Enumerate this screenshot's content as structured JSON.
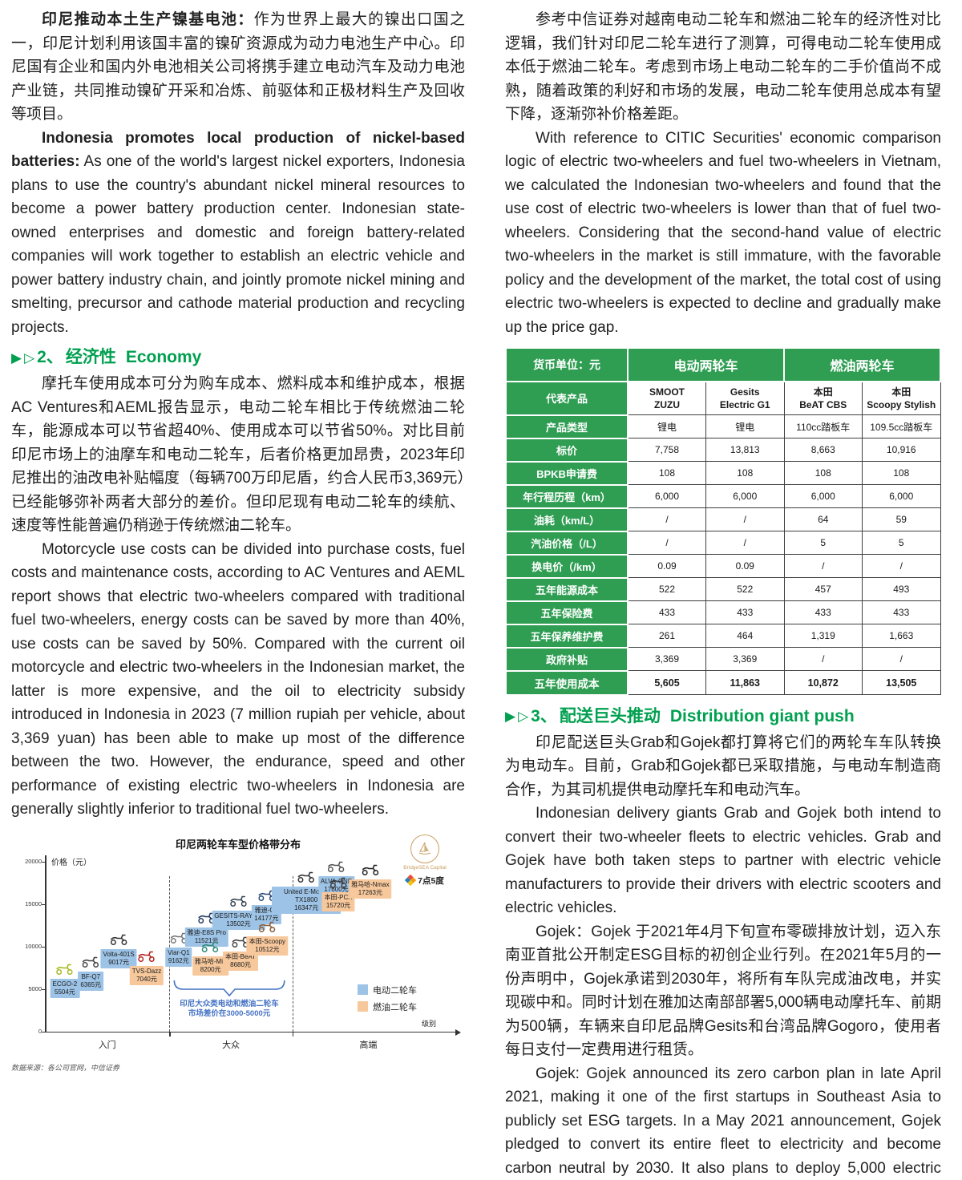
{
  "icons": {
    "arrow_filled": "▶",
    "arrow_open": "▷"
  },
  "left": {
    "p1": {
      "lead": "印尼推动本土生产镍基电池：",
      "body": "作为世界上最大的镍出口国之一，印尼计划利用该国丰富的镍矿资源成为动力电池生产中心。印尼国有企业和国内外电池相关公司将携手建立电动汽车及动力电池产业链，共同推动镍矿开采和冶炼、前驱体和正极材料生产及回收等项目。"
    },
    "p2": {
      "lead": "Indonesia promotes local production of nickel-based batteries:",
      "body": " As one of the world's largest nickel exporters, Indonesia plans to use the country's abundant nickel mineral resources to become a power battery production center. Indonesian state-owned enterprises and domestic and foreign battery-related companies will work together to establish an electric vehicle and power battery industry chain, and jointly promote nickel mining and smelting, precursor and cathode material production and recycling projects."
    },
    "heading2": {
      "prefix": "2、",
      "cn": "经济性",
      "en": "Economy"
    },
    "p3": {
      "body": "摩托车使用成本可分为购车成本、燃料成本和维护成本，根据AC Ventures和AEML报告显示，电动二轮车相比于传统燃油二轮车，能源成本可以节省超40%、使用成本可以节省50%。对比目前印尼市场上的油摩车和电动二轮车，后者价格更加昂贵，2023年印尼推出的油改电补贴幅度（每辆700万印尼盾，约合人民币3,369元）已经能够弥补两者大部分的差价。但印尼现有电动二轮车的续航、速度等性能普遍仍稍逊于传统燃油二轮车。"
    },
    "p4": {
      "body": "Motorcycle use costs can be divided into purchase costs, fuel costs and maintenance costs, according to AC Ventures and AEML report shows that electric two-wheelers compared with traditional fuel two-wheelers, energy costs can be saved by more than 40%, use costs can be saved by 50%. Compared with the current oil motorcycle and electric two-wheelers in the Indonesian market, the latter is more expensive, and the oil to electricity subsidy introduced in Indonesia in 2023 (7 million rupiah per vehicle, about 3,369 yuan) has been able to make up most of the difference between the two. However, the endurance, speed and other performance of existing electric two-wheelers in Indonesia are generally slightly inferior to traditional fuel two-wheelers."
    }
  },
  "right": {
    "p1": {
      "body": "参考中信证券对越南电动二轮车和燃油二轮车的经济性对比逻辑，我们针对印尼二轮车进行了测算，可得电动二轮车使用成本低于燃油二轮车。考虑到市场上电动二轮车的二手价值尚不成熟，随着政策的利好和市场的发展，电动二轮车使用总成本有望下降，逐渐弥补价格差距。"
    },
    "p2": {
      "body": "With reference to CITIC Securities' economic comparison logic of electric two-wheelers and fuel two-wheelers in Vietnam, we calculated the Indonesian two-wheelers and found that the use cost of electric two-wheelers is lower than that of fuel two-wheelers. Considering that the second-hand value of electric two-wheelers in the market is still immature, with the favorable policy and the development of the market, the total cost of using electric two-wheelers is expected to decline and gradually make up the price gap."
    },
    "heading3": {
      "prefix": "3、",
      "cn": "配送巨头推动",
      "en": "Distribution giant push"
    },
    "p3": {
      "body": "印尼配送巨头Grab和Gojek都打算将它们的两轮车车队转换为电动车。目前，Grab和Gojek都已采取措施，与电动车制造商合作，为其司机提供电动摩托车和电动汽车。"
    },
    "p4": {
      "body": "Indonesian delivery giants Grab and Gojek both intend to convert their two-wheeler fleets to electric vehicles. Grab and Gojek have both taken steps to partner with electric vehicle manufacturers to provide their drivers with electric scooters and electric vehicles."
    },
    "p5": {
      "body": "Gojek：Gojek 于2021年4月下旬宣布零碳排放计划，迈入东南亚首批公开制定ESG目标的初创企业行列。在2021年5月的一份声明中，Gojek承诺到2030年，将所有车队完成油改电，并实现碳中和。同时计划在雅加达南部部署5,000辆电动摩托车、前期为500辆，车辆来自印尼品牌Gesits和台湾品牌Gogoro，使用者每日支付一定费用进行租赁。"
    },
    "p6": {
      "body": "Gojek: Gojek announced its zero carbon plan in late April 2021, making it one of the first startups in Southeast Asia to publicly set ESG targets. In a May 2021 announcement, Gojek pledged to convert its entire fleet to electricity and become carbon neutral by 2030. It also plans to deploy 5,000 electric scooters in south Jakarta, up from 500 initially, from Indone"
    }
  },
  "table": {
    "unit_label": "货币单位：元",
    "group_headers": [
      "电动两轮车",
      "燃油两轮车"
    ],
    "header_color": "#2F9E53",
    "rows": [
      {
        "label": "代表产品",
        "values": [
          "SMOOT\nZUZU",
          "Gesits\nElectric G1",
          "本田\nBeAT CBS",
          "本田\nScoopy Stylish"
        ],
        "kind": "rep"
      },
      {
        "label": "产品类型",
        "values": [
          "锂电",
          "锂电",
          "110cc踏板车",
          "109.5cc踏板车"
        ]
      },
      {
        "label": "标价",
        "values": [
          "7,758",
          "13,813",
          "8,663",
          "10,916"
        ]
      },
      {
        "label": "BPKB申请费",
        "values": [
          "108",
          "108",
          "108",
          "108"
        ]
      },
      {
        "label": "年行程历程（km）",
        "values": [
          "6,000",
          "6,000",
          "6,000",
          "6,000"
        ]
      },
      {
        "label": "油耗（km/L）",
        "values": [
          "/",
          "/",
          "64",
          "59"
        ]
      },
      {
        "label": "汽油价格（/L）",
        "values": [
          "/",
          "/",
          "5",
          "5"
        ]
      },
      {
        "label": "换电价（/km）",
        "values": [
          "0.09",
          "0.09",
          "/",
          "/"
        ]
      },
      {
        "label": "五年能源成本",
        "values": [
          "522",
          "522",
          "457",
          "493"
        ]
      },
      {
        "label": "五年保险费",
        "values": [
          "433",
          "433",
          "433",
          "433"
        ]
      },
      {
        "label": "五年保养维护费",
        "values": [
          "261",
          "464",
          "1,319",
          "1,663"
        ]
      },
      {
        "label": "政府补贴",
        "values": [
          "3,369",
          "3,369",
          "/",
          "/"
        ]
      },
      {
        "label": "五年使用成本",
        "values": [
          "5,605",
          "11,863",
          "10,872",
          "13,505"
        ],
        "kind": "total"
      }
    ]
  },
  "chart_data": {
    "type": "scatter",
    "title": "印尼两轮车车型价格带分布",
    "ylabel": "价格（元）",
    "xlabel": "级别",
    "ylim": [
      0,
      20000
    ],
    "yticks": [
      0,
      5000,
      10000,
      15000,
      20000
    ],
    "segments": [
      "入门",
      "大众",
      "高端"
    ],
    "segment_bounds": [
      0.312,
      0.62
    ],
    "legend": [
      {
        "label": "电动二轮车",
        "color": "#9DC3E6"
      },
      {
        "label": "燃油二轮车",
        "color": "#F7C89C"
      }
    ],
    "legend_position": "bottom-right",
    "annotation": [
      "印尼大众类电动和燃油二轮车",
      "市场差价在3000-5000元"
    ],
    "annotation_color": "#4472C4",
    "source": "数据来源：各公司官网，中信证券",
    "logos": {
      "brand_top": "BridgeSEA Capital",
      "brand_bottom": "7点5度"
    },
    "points": [
      {
        "name": "ECGO-2",
        "price": 5504,
        "type": "electric",
        "segment": "入门",
        "x": 0.05,
        "c": "#a8b820"
      },
      {
        "name": "BF-Q7",
        "price": 6365,
        "type": "electric",
        "segment": "入门",
        "x": 0.115,
        "c": "#444444"
      },
      {
        "name": "Volta-401S",
        "price": 9017,
        "type": "electric",
        "segment": "入门",
        "x": 0.185,
        "c": "#333333"
      },
      {
        "name": "TVS-Dazz",
        "price": 7040,
        "type": "fuel",
        "segment": "入门",
        "x": 0.255,
        "c": "#b22222"
      },
      {
        "name": "Viar-Q1",
        "price": 9162,
        "type": "electric",
        "segment": "大众",
        "x": 0.335,
        "c": "#777777"
      },
      {
        "name": "雅迪-E8S Pro",
        "price": 11521,
        "type": "electric",
        "segment": "大众",
        "x": 0.405,
        "c": "#223a5e"
      },
      {
        "name": "雅马哈-Mio",
        "price": 8200,
        "type": "fuel",
        "segment": "大众",
        "x": 0.415,
        "c": "#2e8b7a"
      },
      {
        "name": "GESITS-RAYA G",
        "price": 13502,
        "type": "electric",
        "segment": "大众",
        "x": 0.485,
        "c": "#36454f"
      },
      {
        "name": "本田-BeAT",
        "price": 8680,
        "type": "fuel",
        "segment": "大众",
        "x": 0.49,
        "c": "#444444"
      },
      {
        "name": "雅迪-G6",
        "price": 14177,
        "type": "electric",
        "segment": "大众",
        "x": 0.555,
        "c": "#2b4a77"
      },
      {
        "name": "本田-Scoopy",
        "price": 10512,
        "type": "fuel",
        "segment": "大众",
        "x": 0.557,
        "c": "#8b5e3c"
      },
      {
        "name": "United E-Motor-TX1800",
        "price": 16347,
        "type": "electric",
        "segment": "高端",
        "x": 0.655,
        "c": "#333333"
      },
      {
        "name": "ALVA-ONE",
        "price": 17600,
        "type": "electric",
        "segment": "高端",
        "x": 0.73,
        "c": "#555555"
      },
      {
        "name": "本田-PCX",
        "price": 15720,
        "type": "fuel",
        "segment": "高端",
        "x": 0.735,
        "c": "#3a3a3a"
      },
      {
        "name": "雅马哈-Nmax",
        "price": 17263,
        "type": "fuel",
        "segment": "高端",
        "x": 0.815,
        "c": "#222222"
      }
    ]
  }
}
